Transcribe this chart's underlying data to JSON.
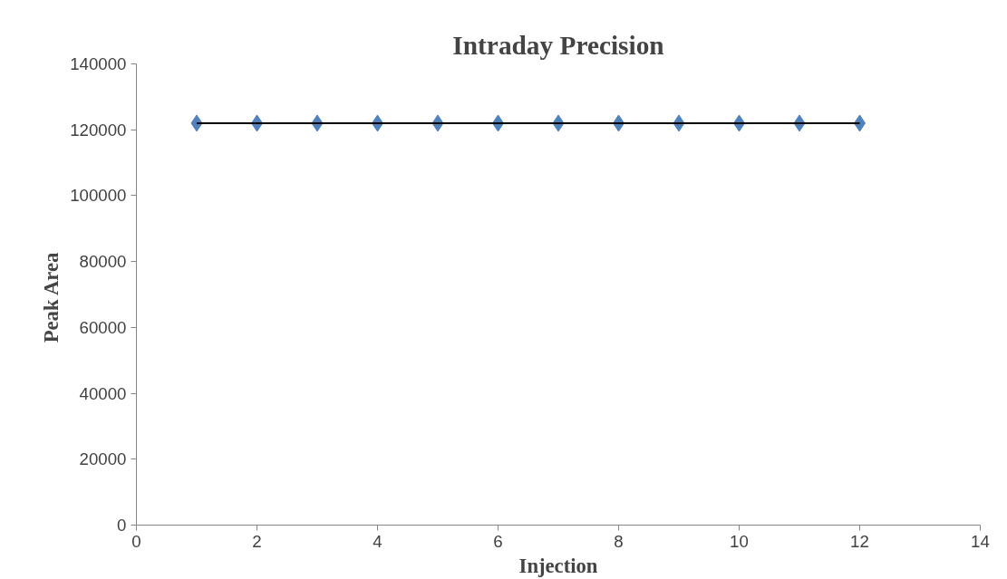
{
  "chart_data": {
    "type": "scatter",
    "title": "Intraday Precision",
    "xlabel": "Injection",
    "ylabel": "Peak  Area",
    "x": [
      1,
      2,
      3,
      4,
      5,
      6,
      7,
      8,
      9,
      10,
      11,
      12
    ],
    "series": [
      {
        "color": "#4f81bd",
        "marker": "diamond",
        "values": [
          122000,
          122000,
          122000,
          122000,
          122000,
          122000,
          122000,
          122000,
          122000,
          122000,
          122000,
          122000
        ]
      },
      {
        "type": "line",
        "color": "#000000",
        "marker": "none",
        "x": [
          1,
          12
        ],
        "values": [
          122000,
          122000
        ]
      }
    ],
    "xlim": [
      0,
      14
    ],
    "xticks": [
      0,
      2,
      4,
      6,
      8,
      10,
      12,
      14
    ],
    "ylim": [
      0,
      140000
    ],
    "yticks": [
      0,
      20000,
      40000,
      60000,
      80000,
      100000,
      120000,
      140000
    ],
    "grid": false
  }
}
